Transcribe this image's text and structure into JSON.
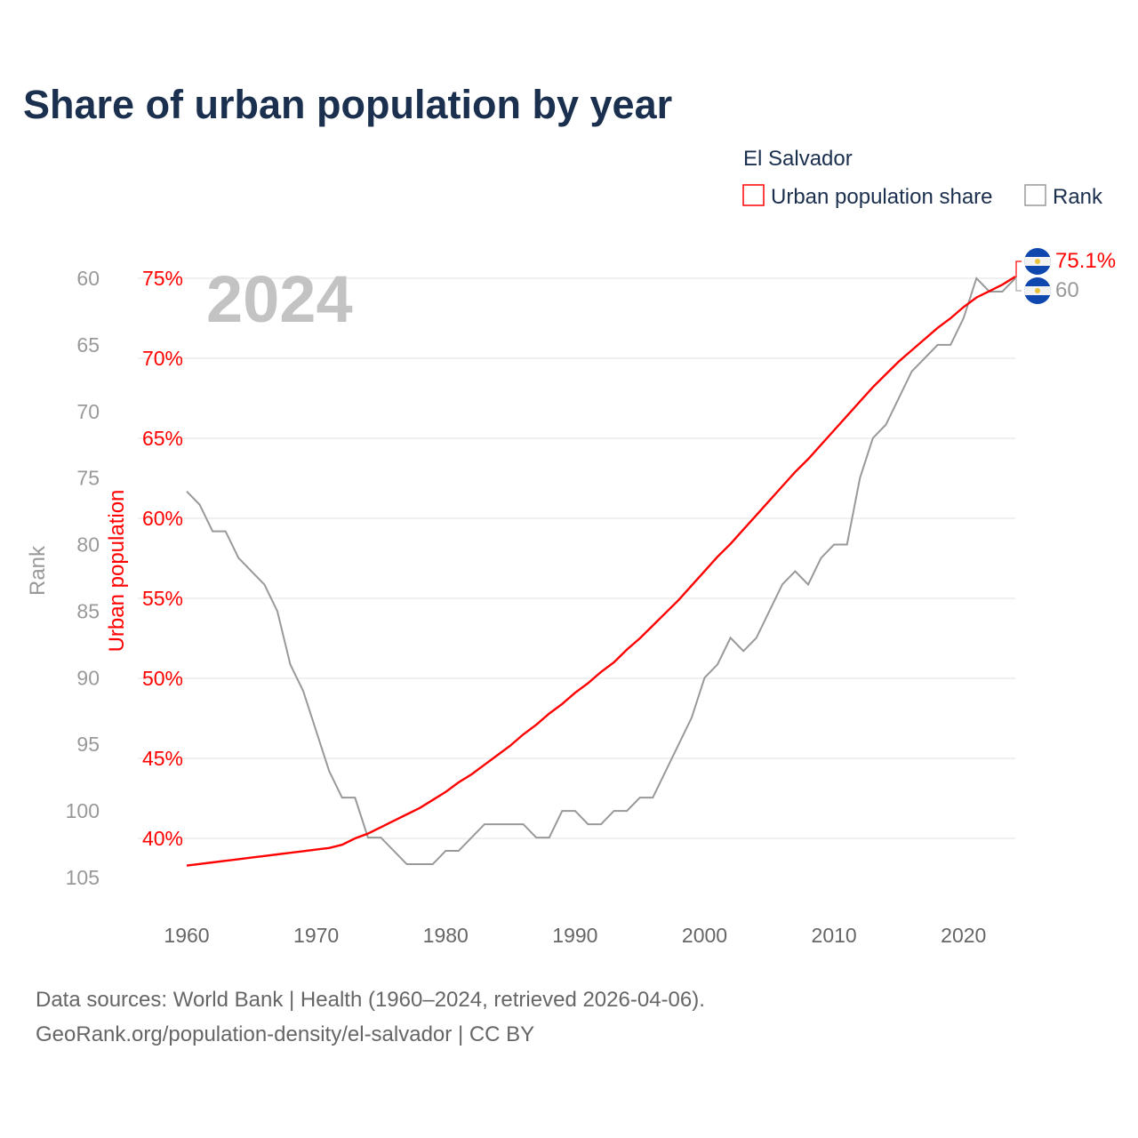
{
  "title": "Share of urban population by year",
  "year_watermark": "2024",
  "legend": {
    "country": "El Salvador",
    "items": [
      {
        "label": "Urban population share",
        "color": "#ff0000"
      },
      {
        "label": "Rank",
        "color": "#999999"
      }
    ]
  },
  "end_labels": {
    "urban": "75.1%",
    "rank": "60"
  },
  "footer": {
    "line1": "Data sources: World Bank | Health (1960–2024, retrieved 2026-04-06).",
    "line2": "GeoRank.org/population-density/el-salvador | CC BY"
  },
  "colors": {
    "title": "#1b2f4e",
    "urban": "#ff0000",
    "rank": "#999999",
    "grid": "#ebebeb",
    "flag_blue": "#0f47af"
  },
  "chart_data": {
    "type": "line",
    "title": "Share of urban population by year",
    "xlabel": "",
    "ylabel_left_outer": "Rank",
    "ylabel_left_inner": "Urban population",
    "xlim": [
      1960,
      2024
    ],
    "urban_ylim": [
      40,
      75
    ],
    "rank_ylim_inverted": [
      60,
      105
    ],
    "x_ticks": [
      1960,
      1970,
      1980,
      1990,
      2000,
      2010,
      2020
    ],
    "x_tick_labels": [
      "1960",
      "1970",
      "1980",
      "1990",
      "2000",
      "2010",
      "2020"
    ],
    "urban_ticks": [
      75,
      70,
      65,
      60,
      55,
      50,
      45,
      40
    ],
    "urban_tick_labels": [
      "75%",
      "70%",
      "65%",
      "60%",
      "55%",
      "50%",
      "45%",
      "40%"
    ],
    "rank_ticks": [
      60,
      65,
      70,
      75,
      80,
      85,
      90,
      95,
      100,
      105
    ],
    "rank_tick_labels": [
      "60",
      "65",
      "70",
      "75",
      "80",
      "85",
      "90",
      "95",
      "100",
      "105"
    ],
    "grid": true,
    "legend_position": "top-right",
    "x": [
      1960,
      1961,
      1962,
      1963,
      1964,
      1965,
      1966,
      1967,
      1968,
      1969,
      1970,
      1971,
      1972,
      1973,
      1974,
      1975,
      1976,
      1977,
      1978,
      1979,
      1980,
      1981,
      1982,
      1983,
      1984,
      1985,
      1986,
      1987,
      1988,
      1989,
      1990,
      1991,
      1992,
      1993,
      1994,
      1995,
      1996,
      1997,
      1998,
      1999,
      2000,
      2001,
      2002,
      2003,
      2004,
      2005,
      2006,
      2007,
      2008,
      2009,
      2010,
      2011,
      2012,
      2013,
      2014,
      2015,
      2016,
      2017,
      2018,
      2019,
      2020,
      2021,
      2022,
      2023,
      2024
    ],
    "series": [
      {
        "name": "Urban population share",
        "unit": "%",
        "values": [
          38.3,
          38.4,
          38.5,
          38.6,
          38.7,
          38.8,
          38.9,
          39.0,
          39.1,
          39.2,
          39.3,
          39.4,
          39.6,
          40.0,
          40.3,
          40.7,
          41.1,
          41.5,
          41.9,
          42.4,
          42.9,
          43.5,
          44.0,
          44.6,
          45.2,
          45.8,
          46.5,
          47.1,
          47.8,
          48.4,
          49.1,
          49.7,
          50.4,
          51.0,
          51.8,
          52.5,
          53.3,
          54.1,
          54.9,
          55.8,
          56.7,
          57.6,
          58.4,
          59.3,
          60.2,
          61.1,
          62.0,
          62.9,
          63.7,
          64.6,
          65.5,
          66.4,
          67.3,
          68.2,
          69.0,
          69.8,
          70.5,
          71.2,
          71.9,
          72.5,
          73.2,
          73.8,
          74.2,
          74.6,
          75.1
        ]
      },
      {
        "name": "Rank",
        "unit": "rank",
        "values": [
          76,
          77,
          79,
          79,
          81,
          82,
          83,
          85,
          89,
          91,
          94,
          97,
          99,
          99,
          102,
          102,
          103,
          104,
          104,
          104,
          103,
          103,
          102,
          101,
          101,
          101,
          101,
          102,
          102,
          100,
          100,
          101,
          101,
          100,
          100,
          99,
          99,
          97,
          95,
          93,
          90,
          89,
          87,
          88,
          87,
          85,
          83,
          82,
          83,
          81,
          80,
          80,
          75,
          72,
          71,
          69,
          67,
          66,
          65,
          65,
          63,
          60,
          61,
          61,
          60
        ]
      }
    ]
  }
}
